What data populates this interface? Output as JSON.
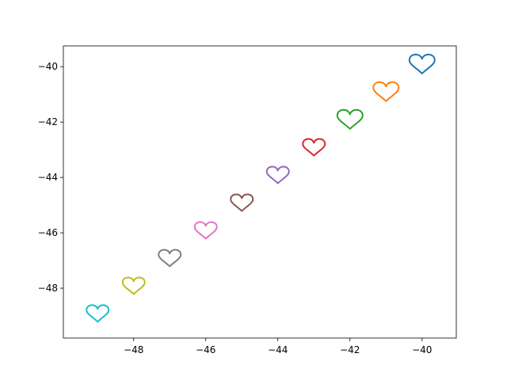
{
  "chart_data": {
    "type": "scatter",
    "title": "",
    "xlabel": "",
    "ylabel": "",
    "xlim": [
      -49.95,
      -39.05
    ],
    "ylim": [
      -49.8,
      -39.25
    ],
    "grid": false,
    "x_ticks": [
      -48,
      -46,
      -44,
      -42,
      -40
    ],
    "x_tick_labels": [
      "−48",
      "−46",
      "−44",
      "−42",
      "−40"
    ],
    "y_ticks": [
      -48,
      -46,
      -44,
      -42,
      -40
    ],
    "y_tick_labels": [
      "−48",
      "−46",
      "−44",
      "−42",
      "−40"
    ],
    "marker": "heart-outline",
    "points": [
      {
        "x": -49,
        "y": -49,
        "color": "#17becf",
        "scale": 0.7
      },
      {
        "x": -48,
        "y": -48,
        "color": "#bcbd22",
        "scale": 0.7
      },
      {
        "x": -47,
        "y": -47,
        "color": "#7f7f7f",
        "scale": 0.7
      },
      {
        "x": -46,
        "y": -46,
        "color": "#e377c2",
        "scale": 0.7
      },
      {
        "x": -45,
        "y": -45,
        "color": "#8c564b",
        "scale": 0.7
      },
      {
        "x": -44,
        "y": -44,
        "color": "#9467bd",
        "scale": 0.7
      },
      {
        "x": -43,
        "y": -43,
        "color": "#d62728",
        "scale": 0.7
      },
      {
        "x": -42,
        "y": -42,
        "color": "#2ca02c",
        "scale": 0.8
      },
      {
        "x": -41,
        "y": -41,
        "color": "#ff7f0e",
        "scale": 0.8
      },
      {
        "x": -40,
        "y": -40,
        "color": "#1f77b4",
        "scale": 0.8
      }
    ]
  }
}
